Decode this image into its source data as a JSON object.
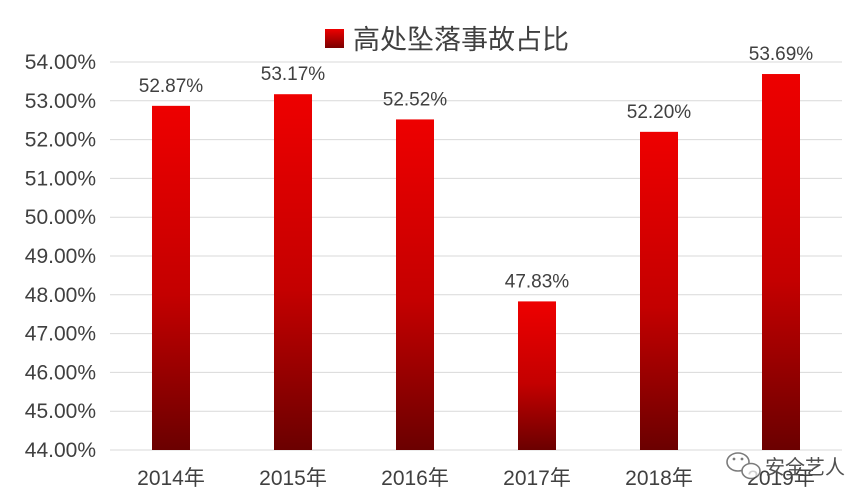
{
  "chart_data": {
    "type": "bar",
    "categories": [
      "2014年",
      "2015年",
      "2016年",
      "2017年",
      "2018年",
      "2019年"
    ],
    "series": [
      {
        "name": "高处坠落事故占比",
        "values": [
          52.87,
          53.17,
          52.52,
          47.83,
          52.2,
          53.69
        ],
        "value_labels": [
          "52.87%",
          "53.17%",
          "52.52%",
          "47.83%",
          "52.20%",
          "53.69%"
        ]
      }
    ],
    "ylim": [
      44,
      54
    ],
    "yticks": [
      44,
      45,
      46,
      47,
      48,
      49,
      50,
      51,
      52,
      53,
      54
    ],
    "ytick_labels": [
      "44.00%",
      "45.00%",
      "46.00%",
      "47.00%",
      "48.00%",
      "49.00%",
      "50.00%",
      "51.00%",
      "52.00%",
      "53.00%",
      "54.00%"
    ],
    "grid": true,
    "legend_position": "top",
    "colors": {
      "bar_top": "#ee0000",
      "bar_bottom": "#6b0000",
      "grid": "#d9d9d9"
    }
  },
  "watermark": {
    "icon": "wechat-icon",
    "text": "安全艺人"
  }
}
